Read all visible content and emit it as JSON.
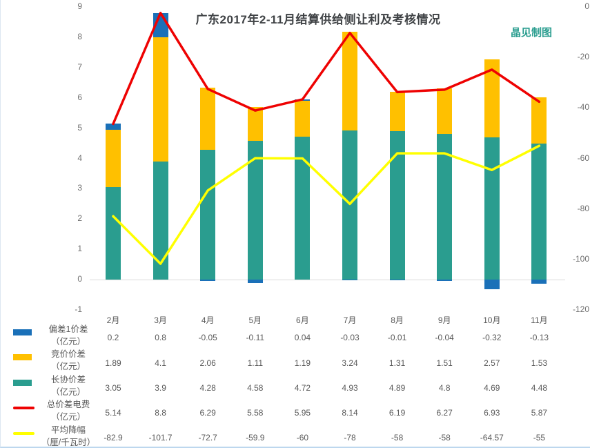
{
  "title": "广东2017年2-11月结算供给侧让利及考核情况",
  "watermark": "晶见制图",
  "chart_data": {
    "type": "bar",
    "subtype": "stacked-bar-with-lines",
    "categories": [
      "2月",
      "3月",
      "4月",
      "5月",
      "6月",
      "7月",
      "8月",
      "9月",
      "10月",
      "11月"
    ],
    "series": [
      {
        "name": "偏差1价差",
        "unit": "（亿元）",
        "render": "bar",
        "color": "#1a70b8",
        "values": [
          0.2,
          0.8,
          -0.05,
          -0.11,
          0.04,
          -0.03,
          -0.01,
          -0.04,
          -0.32,
          -0.13
        ]
      },
      {
        "name": "竞价价差",
        "unit": "（亿元）",
        "render": "bar",
        "color": "#ffc000",
        "values": [
          1.89,
          4.1,
          2.06,
          1.11,
          1.19,
          3.24,
          1.31,
          1.51,
          2.57,
          1.53
        ]
      },
      {
        "name": "长协价差",
        "unit": "（亿元）",
        "render": "bar",
        "color": "#2a9d8f",
        "values": [
          3.05,
          3.9,
          4.28,
          4.58,
          4.72,
          4.93,
          4.89,
          4.8,
          4.69,
          4.48
        ]
      },
      {
        "name": "总价差电费",
        "unit": "（亿元）",
        "render": "line",
        "axis": "left",
        "color": "#ee0202",
        "values": [
          5.14,
          8.8,
          6.29,
          5.58,
          5.95,
          8.14,
          6.19,
          6.27,
          6.93,
          5.87
        ]
      },
      {
        "name": "平均降幅",
        "unit": "（厘/千瓦时）",
        "render": "line",
        "axis": "right",
        "color": "#ffff00",
        "values": [
          -82.9,
          -101.7,
          -72.7,
          -59.9,
          -60,
          -78,
          -58,
          -58,
          -64.57,
          -55
        ]
      }
    ],
    "left_axis": {
      "label": "",
      "min": -1,
      "max": 9,
      "ticks": [
        9,
        8,
        7,
        6,
        5,
        4,
        3,
        2,
        1,
        0,
        -1
      ]
    },
    "right_axis": {
      "label": "",
      "min": -120,
      "max": 0,
      "ticks": [
        0,
        -20,
        -40,
        -60,
        -80,
        -100,
        -120
      ]
    },
    "grid": "zero-line-only",
    "legend_position": "bottom-left",
    "data_table_shown": true
  }
}
